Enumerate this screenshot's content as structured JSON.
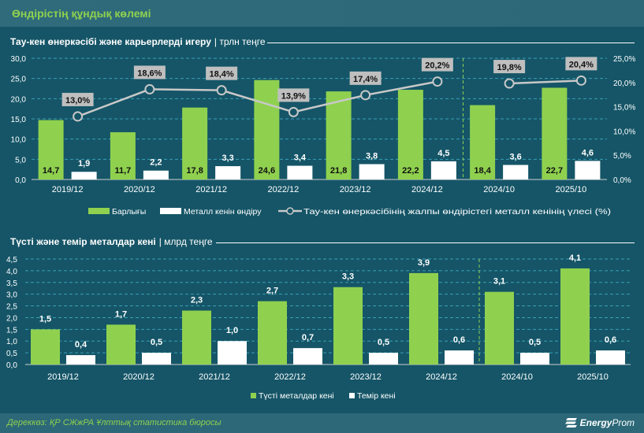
{
  "header": {
    "title": "Өндірістің құндық көлемі"
  },
  "footer": {
    "source": "Дереккөз: ҚР СЖжРА Ұлттық статистика бюросы",
    "logo_bold": "Energy",
    "logo_rest": "Prom"
  },
  "colors": {
    "green": "#8fd14f",
    "white": "#ffffff",
    "line": "#c8c8c8",
    "label_box": "#bfbfbf",
    "grid": "#3aa0b8",
    "divider": "#8fd14f"
  },
  "chart_data": [
    {
      "type": "bar+line",
      "title": "Тау-кен өнеркәсібі және карьерлерді игеру",
      "unit": "трлн теңге",
      "categories": [
        "2019/12",
        "2020/12",
        "2021/12",
        "2022/12",
        "2023/12",
        "2024/12",
        "2024/10",
        "2025/10"
      ],
      "ylim": [
        0,
        30
      ],
      "yticks": [
        "0,0",
        "5,0",
        "10,0",
        "15,0",
        "20,0",
        "25,0",
        "30,0"
      ],
      "y2lim": [
        0,
        25
      ],
      "y2ticks": [
        "0,0%",
        "5,0%",
        "10,0%",
        "15,0%",
        "20,0%",
        "25,0%"
      ],
      "grid": true,
      "legend_position": "bottom",
      "series": [
        {
          "name": "Барлығы",
          "type": "bar",
          "color": "#8fd14f",
          "values": [
            14.7,
            11.7,
            17.8,
            24.6,
            21.8,
            22.2,
            18.4,
            22.7
          ],
          "labels": [
            "14,7",
            "11,7",
            "17,8",
            "24,6",
            "21,8",
            "22,2",
            "18,4",
            "22,7"
          ]
        },
        {
          "name": "Металл кенін өндіру",
          "type": "bar",
          "color": "#ffffff",
          "values": [
            1.9,
            2.2,
            3.3,
            3.4,
            3.8,
            4.5,
            3.6,
            4.6
          ],
          "labels": [
            "1,9",
            "2,2",
            "3,3",
            "3,4",
            "3,8",
            "4,5",
            "3,6",
            "4,6"
          ]
        },
        {
          "name": "Тау-кен өнеркәсібінің жалпы өндірістегі металл кенінің үлесі (%)",
          "type": "line",
          "axis": "right",
          "color": "#c8c8c8",
          "values": [
            13.0,
            18.6,
            18.4,
            13.9,
            17.4,
            20.2,
            19.8,
            20.4
          ],
          "labels": [
            "13,0%",
            "18,6%",
            "18,4%",
            "13,9%",
            "17,4%",
            "20,2%",
            "19,8%",
            "20,4%"
          ]
        }
      ]
    },
    {
      "type": "bar",
      "title": "Түсті және темір металдар кені",
      "unit": "млрд теңге",
      "categories": [
        "2019/12",
        "2020/12",
        "2021/12",
        "2022/12",
        "2023/12",
        "2024/12",
        "2024/10",
        "2025/10"
      ],
      "ylim": [
        0,
        4.5
      ],
      "yticks": [
        "0,0",
        "0,5",
        "1,0",
        "1,5",
        "2,0",
        "2,5",
        "3,0",
        "3,5",
        "4,0",
        "4,5"
      ],
      "grid": true,
      "legend_position": "bottom",
      "series": [
        {
          "name": "Түсті металдар кені",
          "color": "#8fd14f",
          "values": [
            1.5,
            1.7,
            2.3,
            2.7,
            3.3,
            3.9,
            3.1,
            4.1
          ],
          "labels": [
            "1,5",
            "1,7",
            "2,3",
            "2,7",
            "3,3",
            "3,9",
            "3,1",
            "4,1"
          ]
        },
        {
          "name": "Темір кені",
          "color": "#ffffff",
          "values": [
            0.4,
            0.5,
            1.0,
            0.7,
            0.5,
            0.6,
            0.5,
            0.6
          ],
          "labels": [
            "0,4",
            "0,5",
            "1,0",
            "0,7",
            "0,5",
            "0,6",
            "0,5",
            "0,6"
          ]
        }
      ]
    }
  ]
}
